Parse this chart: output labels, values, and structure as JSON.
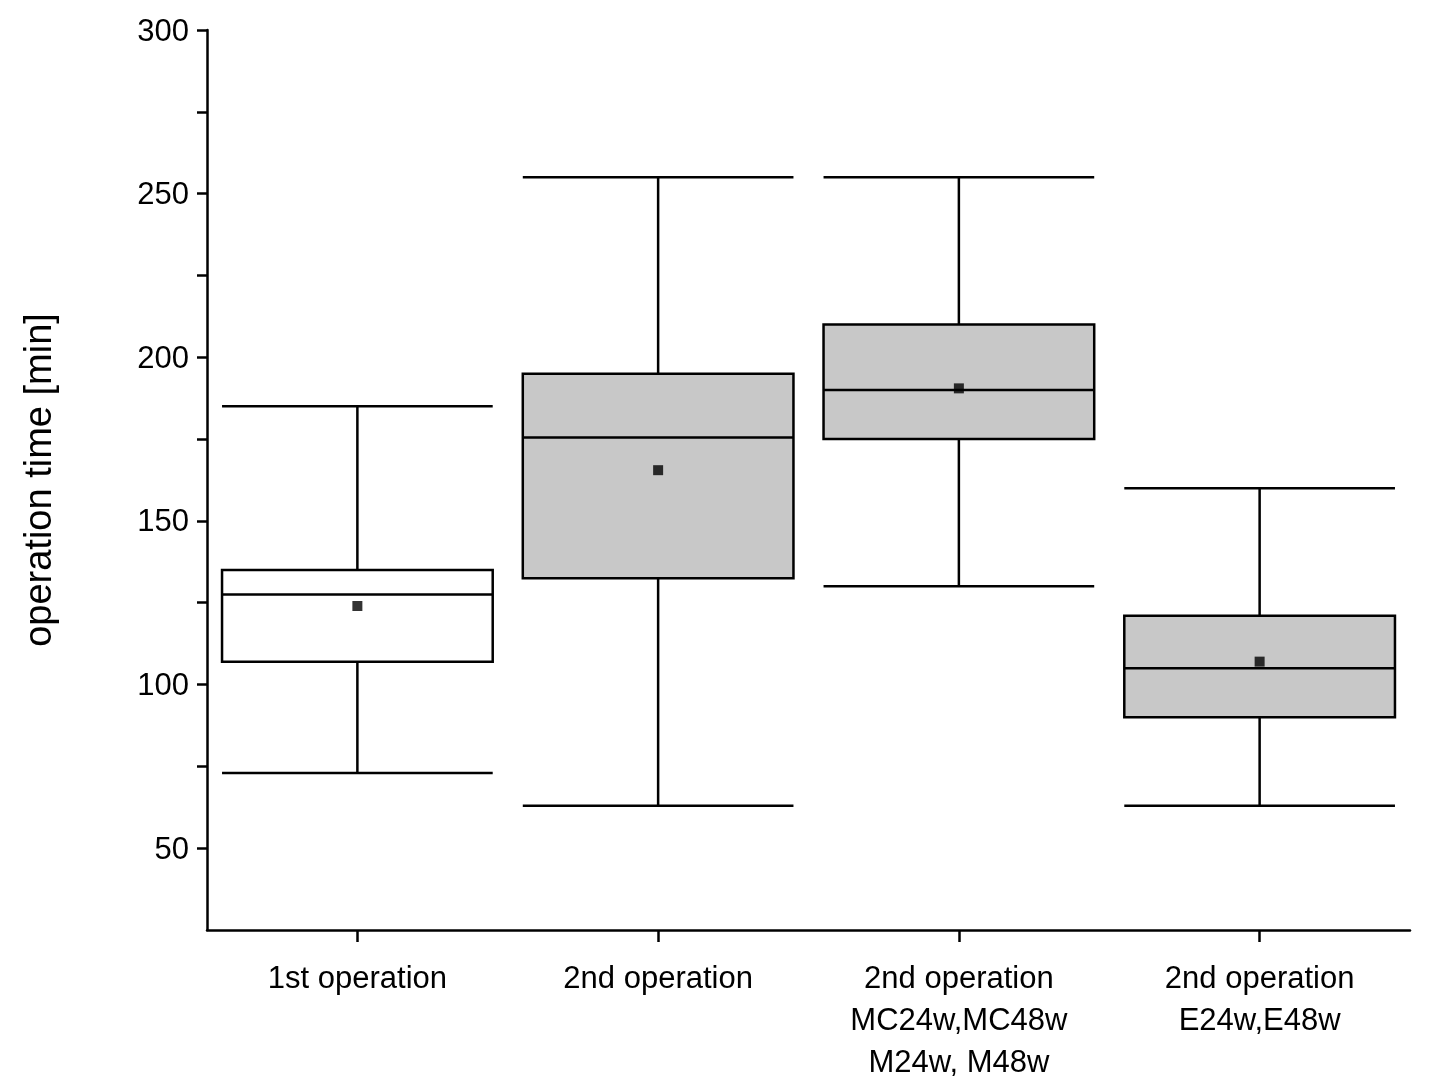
{
  "chart_data": {
    "type": "box",
    "ylabel": "operation time [min]",
    "categories": [
      "1st operation",
      "2nd operation",
      "2nd operation\nMC24w,MC48w\nM24w, M48w",
      "2nd operation\nE24w,E48w"
    ],
    "boxes": [
      {
        "low": 73,
        "q1": 107,
        "median": 127.5,
        "q3": 135,
        "high": 185,
        "mean": 124
      },
      {
        "low": 63,
        "q1": 132.5,
        "median": 175.5,
        "q3": 195,
        "high": 255,
        "mean": 165.5
      },
      {
        "low": 130,
        "q1": 175,
        "median": 190,
        "q3": 210,
        "high": 255,
        "mean": 190.5
      },
      {
        "low": 63,
        "q1": 90,
        "median": 105,
        "q3": 121,
        "high": 160,
        "mean": 107
      }
    ],
    "colors": [
      "#ffffff",
      "#c8c8c8",
      "#c8c8c8",
      "#c8c8c8"
    ],
    "ylim": [
      25,
      300
    ],
    "yticks": [
      50,
      {
        "value": 75,
        "label": null
      },
      100,
      {
        "value": 125,
        "label": null
      },
      150,
      {
        "value": 175,
        "label": null
      },
      200,
      {
        "value": 225,
        "label": null
      },
      250,
      {
        "value": 275,
        "label": null
      },
      300
    ],
    "marker": "square",
    "grid": false
  }
}
